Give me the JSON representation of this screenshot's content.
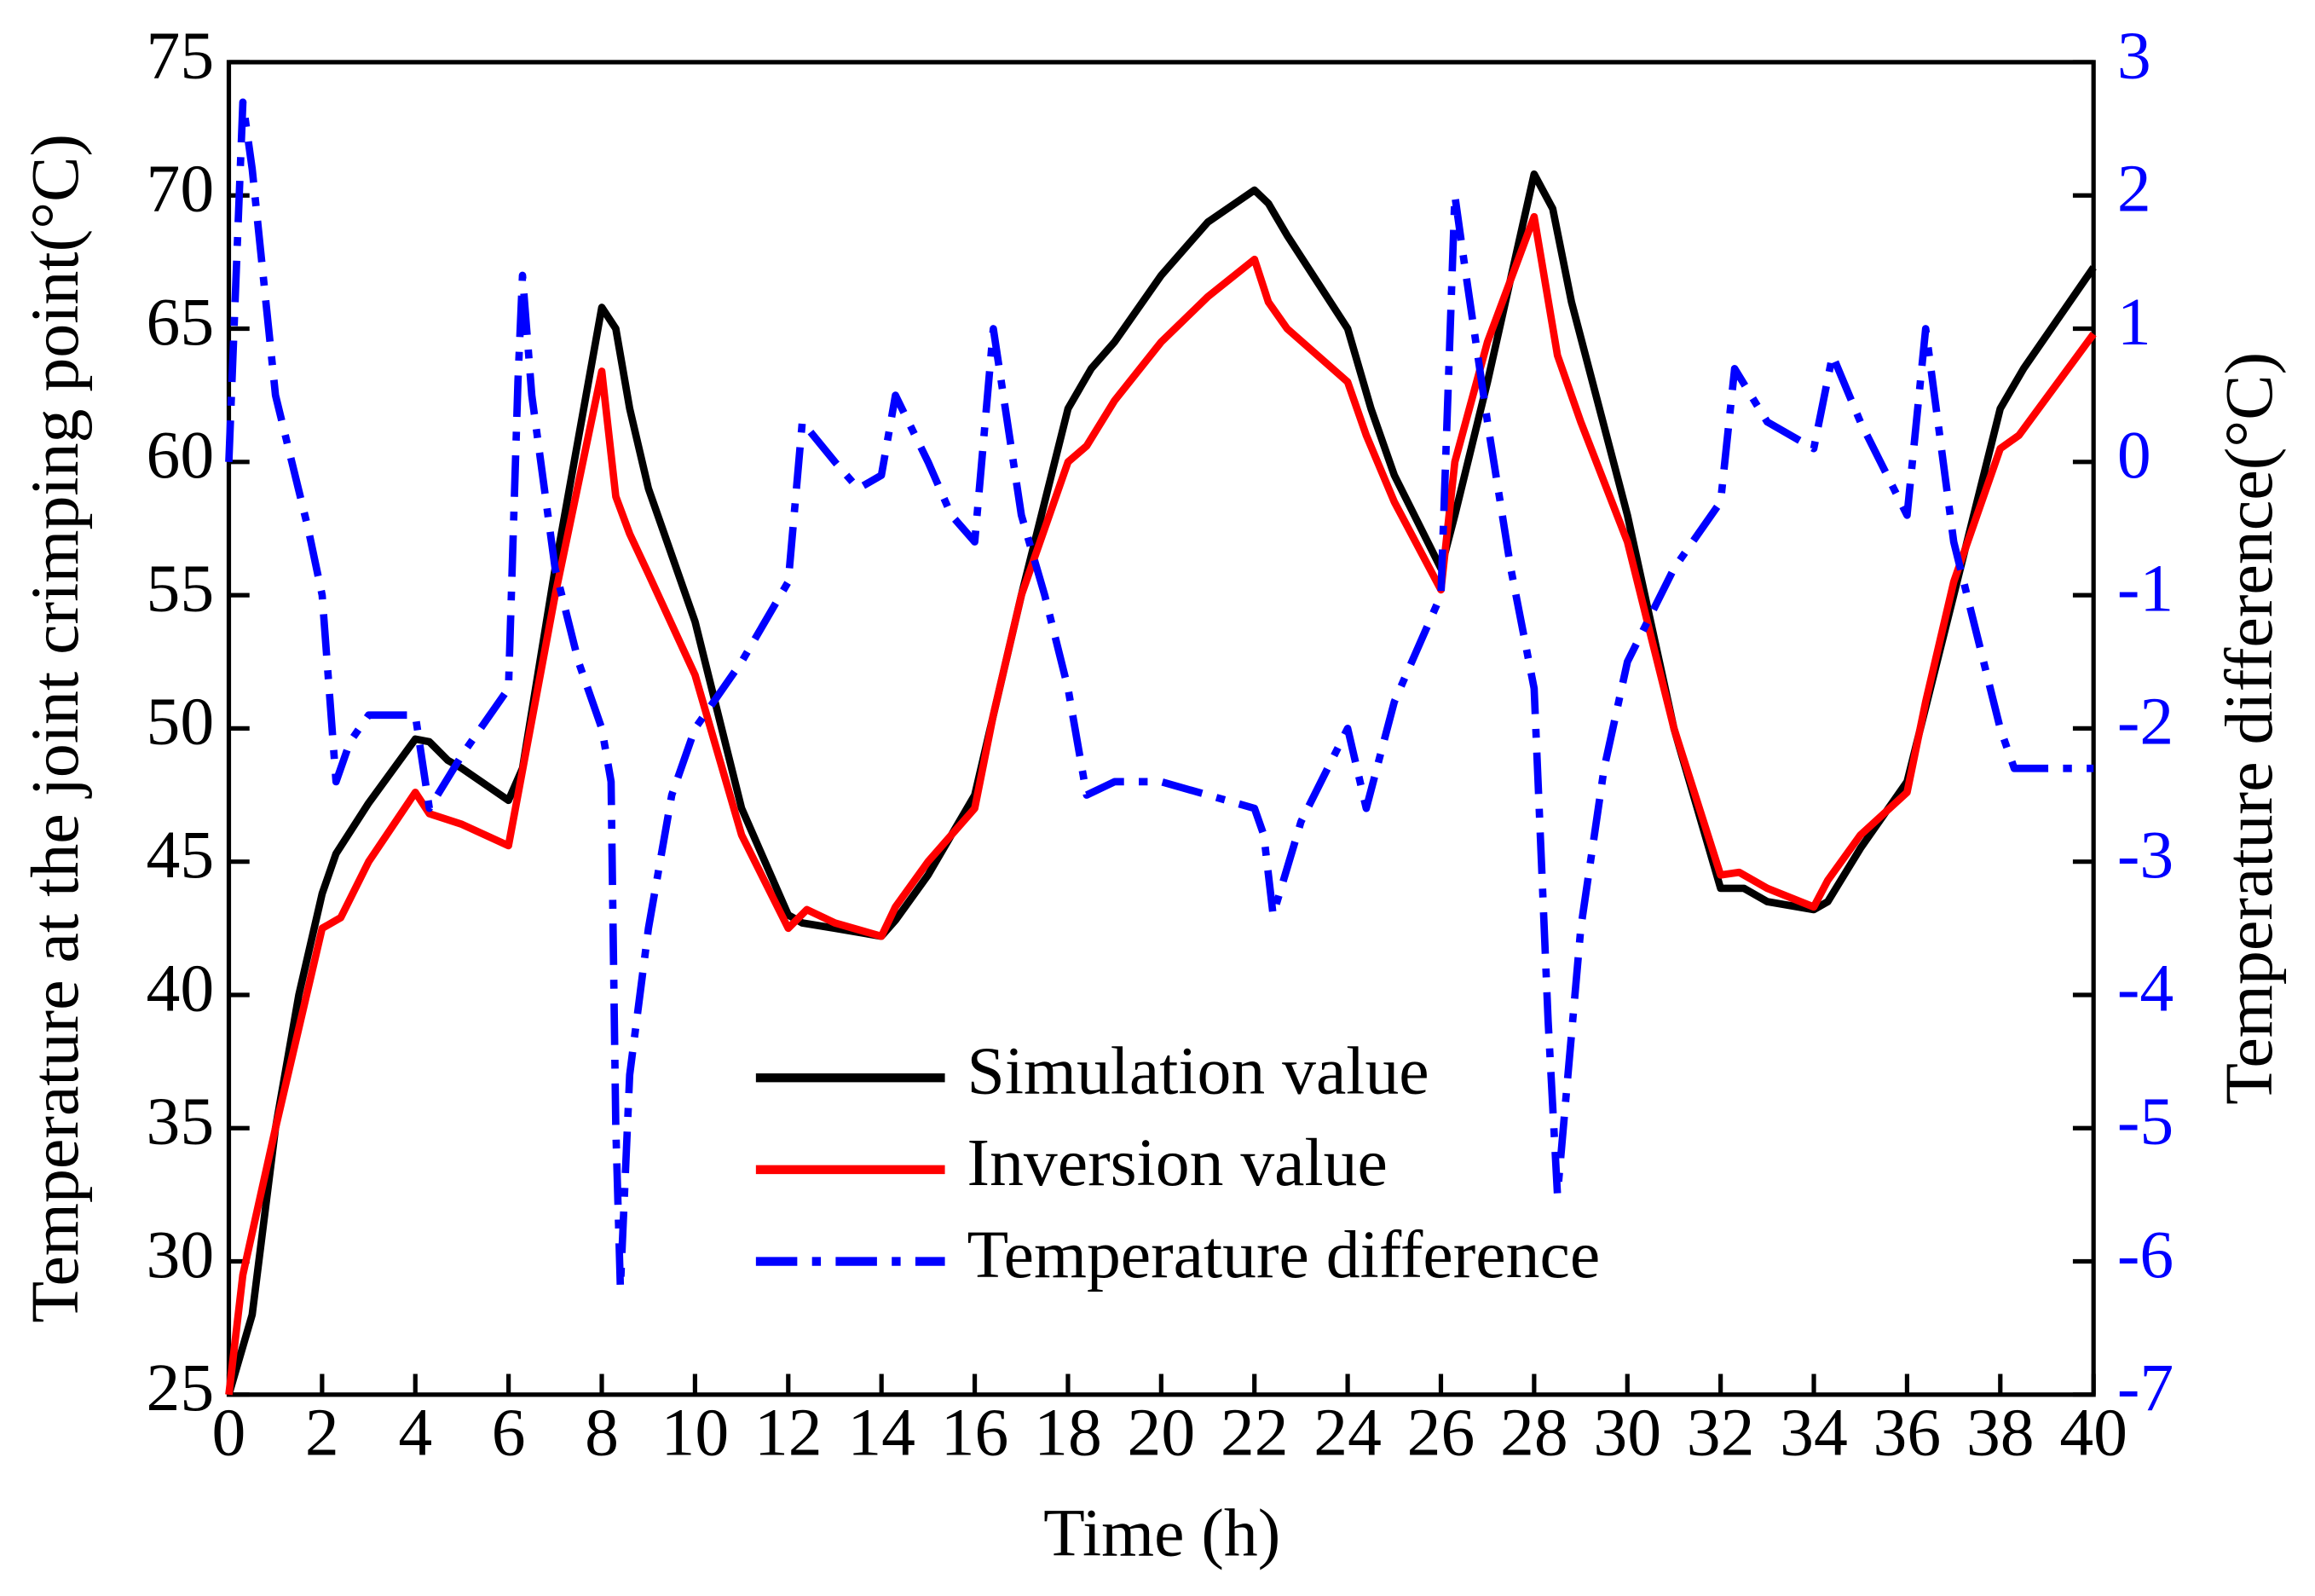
{
  "chart_data": {
    "type": "line",
    "xlabel": "Time (h)",
    "ylabel": "Temperature at the joint crimping point(°C)",
    "y2label": "Temperature difference(°C)",
    "xlim": [
      0,
      40
    ],
    "xticks": [
      0,
      2,
      4,
      6,
      8,
      10,
      12,
      14,
      16,
      18,
      20,
      22,
      24,
      26,
      28,
      30,
      32,
      34,
      36,
      38,
      40
    ],
    "ylim": [
      25,
      75
    ],
    "yticks": [
      25,
      30,
      35,
      40,
      45,
      50,
      55,
      60,
      65,
      70,
      75
    ],
    "y2lim": [
      -7,
      3
    ],
    "y2ticks": [
      -7,
      -6,
      -5,
      -4,
      -3,
      -2,
      -1,
      0,
      1,
      2,
      3
    ],
    "y2color": "#0000ff",
    "legend": "center",
    "series": [
      {
        "name": "Simulation value",
        "color": "#000000",
        "dash": "solid",
        "x": [
          0,
          0.5,
          1,
          1.5,
          2,
          2.3,
          3,
          4,
          4.3,
          4.7,
          5,
          6,
          6.3,
          7,
          8,
          8.3,
          8.6,
          9,
          10,
          11,
          12,
          12.3,
          13,
          14,
          14.3,
          15,
          16,
          17,
          18,
          18.5,
          19,
          20,
          21,
          22,
          22.3,
          22.7,
          24,
          24.5,
          25,
          26,
          26.3,
          27,
          28,
          28.4,
          28.8,
          30,
          31,
          32,
          32.5,
          33,
          34,
          34.3,
          35,
          36,
          37,
          38,
          38.5,
          40
        ],
        "values": [
          25,
          28,
          35,
          40,
          43.8,
          45.3,
          47.2,
          49.6,
          49.5,
          48.8,
          48.5,
          47.3,
          48.5,
          56,
          65.8,
          65,
          62,
          59,
          54,
          47,
          43,
          42.7,
          42.5,
          42.2,
          42.8,
          44.5,
          47.5,
          55,
          62,
          63.5,
          64.5,
          67,
          69,
          70.2,
          69.7,
          68.5,
          65,
          62,
          59.5,
          56,
          58,
          63,
          70.8,
          69.5,
          66,
          58,
          50,
          44,
          44,
          43.5,
          43.2,
          43.5,
          45.5,
          48,
          55,
          62,
          63.5,
          67.3
        ]
      },
      {
        "name": "Inversion value",
        "color": "#ff0000",
        "dash": "solid",
        "x": [
          0,
          0.3,
          1,
          2,
          2.4,
          3,
          4,
          4.3,
          5,
          6,
          7,
          8,
          8.3,
          8.6,
          9,
          10,
          11,
          12,
          12.4,
          13,
          14,
          14.3,
          15,
          16,
          16.4,
          17,
          18,
          18.4,
          19,
          20,
          21,
          22,
          22.3,
          22.7,
          24,
          24.4,
          25,
          26,
          26.3,
          27,
          28,
          28.5,
          29,
          30,
          31,
          32,
          32.4,
          33,
          34,
          34.3,
          35,
          36,
          36.4,
          37,
          38,
          38.4,
          40
        ],
        "values": [
          25,
          29.5,
          35,
          42.5,
          42.9,
          45,
          47.6,
          46.8,
          46.4,
          45.6,
          55,
          63.4,
          58.7,
          57.3,
          55.8,
          52,
          46,
          42.5,
          43.2,
          42.7,
          42.2,
          43.3,
          45,
          47,
          50.5,
          55,
          60,
          60.6,
          62.3,
          64.5,
          66.2,
          67.6,
          66,
          65,
          63,
          61,
          58.5,
          55.2,
          60,
          64.5,
          69.2,
          64,
          61.5,
          57,
          50,
          44.5,
          44.6,
          44,
          43.3,
          44.3,
          46,
          47.6,
          51,
          55.5,
          60.5,
          61,
          64.8
        ]
      },
      {
        "name": "Temperature difference",
        "color": "#0000ff",
        "dash": "dashdot",
        "axis": "y2",
        "x": [
          0,
          0.3,
          0.5,
          1,
          1.7,
          2,
          2.3,
          2.6,
          3,
          4,
          4.3,
          5,
          6,
          6.2,
          6.3,
          6.5,
          7,
          7.5,
          8,
          8.2,
          8.3,
          8.4,
          8.6,
          9,
          9.5,
          10,
          11,
          12,
          12.3,
          13,
          13.5,
          14,
          14.3,
          15,
          15.5,
          16,
          16.4,
          17,
          17.5,
          18,
          18.4,
          19,
          20,
          21,
          22,
          22.2,
          22.4,
          23,
          24,
          24.4,
          25,
          26,
          26.3,
          26.5,
          27,
          27.5,
          28,
          28.3,
          28.5,
          29,
          29.5,
          30,
          31,
          32,
          32.3,
          33,
          34,
          34.4,
          35,
          36,
          36.4,
          37,
          38,
          38.3,
          39,
          40
        ],
        "values": [
          0,
          2.7,
          2.2,
          0.5,
          -0.5,
          -1,
          -2.4,
          -2.1,
          -1.9,
          -1.9,
          -2.6,
          -2.2,
          -1.7,
          0.6,
          1.4,
          0.5,
          -0.8,
          -1.5,
          -2,
          -2.4,
          -5,
          -6.2,
          -4.6,
          -3.5,
          -2.5,
          -2,
          -1.5,
          -0.9,
          0.3,
          0,
          -0.2,
          -0.1,
          0.5,
          0,
          -0.4,
          -0.6,
          1,
          -0.4,
          -1,
          -1.7,
          -2.5,
          -2.4,
          -2.4,
          -2.5,
          -2.6,
          -2.8,
          -3.4,
          -2.7,
          -2,
          -2.6,
          -1.8,
          -1,
          2,
          1.5,
          0.3,
          -0.8,
          -1.7,
          -4.2,
          -5.5,
          -3.5,
          -2.3,
          -1.5,
          -0.8,
          -0.3,
          0.7,
          0.3,
          0.1,
          0.8,
          0.3,
          -0.4,
          1,
          -0.6,
          -2,
          -2.3,
          -2.3,
          -2.3
        ]
      }
    ]
  }
}
